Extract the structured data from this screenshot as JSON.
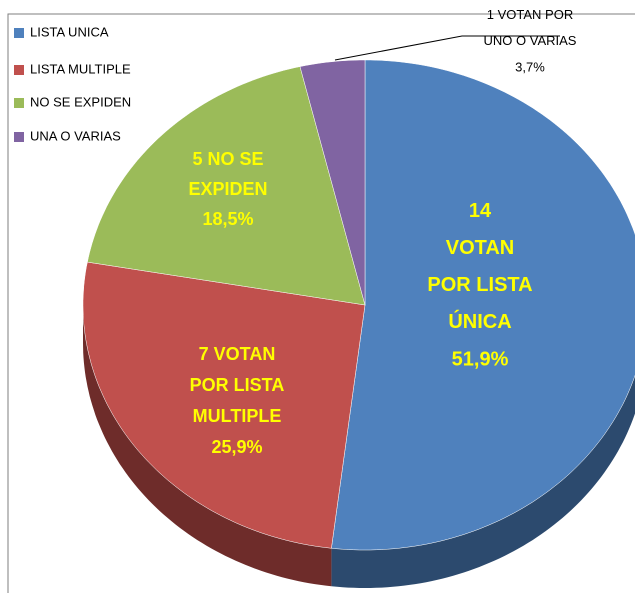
{
  "chart_data": {
    "type": "pie3d",
    "categories": [
      "LISTA UNICA",
      "LISTA MULTIPLE",
      "NO SE EXPIDEN",
      "UNA O VARIAS"
    ],
    "values": [
      51.9,
      25.9,
      18.5,
      3.7
    ],
    "value_labels": [
      "51,9%",
      "25,9%",
      "18,5%",
      "3,7%"
    ],
    "counts": [
      14,
      7,
      5,
      1
    ],
    "label_lines": [
      [
        "VOTAN",
        "POR LISTA",
        "ÚNICA"
      ],
      [
        "VOTAN",
        "POR LISTA",
        "MULTIPLE"
      ],
      [
        "NO SE",
        "EXPIDEN"
      ],
      [
        "VOTAN POR",
        "UNO O VARIAS"
      ]
    ],
    "colors": [
      "#4f81bd",
      "#c0504d",
      "#9bbb59",
      "#8064a2"
    ],
    "side_colors": [
      "#2c4a6e",
      "#6e2c2a",
      "#5a6d33",
      "#4a3a5e"
    ],
    "legend": "top-left"
  }
}
